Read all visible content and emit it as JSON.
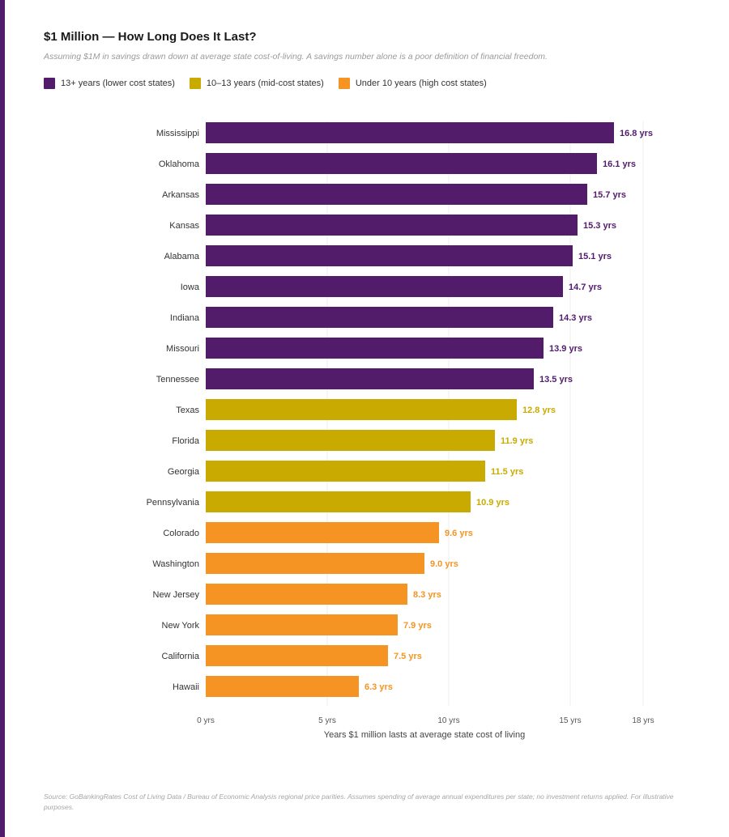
{
  "title": "$1 Million — How Long Does It Last?",
  "subtitle": "Assuming $1M in savings drawn down at average state cost-of-living. A savings number alone is a poor definition of financial freedom.",
  "colors": {
    "high": "#521c6b",
    "mid": "#c9aa00",
    "low": "#f59423",
    "accent_rule": "#4f1d6b",
    "grid": "#ececec",
    "axis_text": "#444444"
  },
  "legend": [
    {
      "label": "13+ years (lower cost states)",
      "color": "#521c6b"
    },
    {
      "label": "10–13 years (mid-cost states)",
      "color": "#c9aa00"
    },
    {
      "label": "Under 10 years (high cost states)",
      "color": "#f59423"
    }
  ],
  "chart_data": {
    "type": "bar",
    "orientation": "horizontal",
    "title": "$1 Million — How Long Does It Last?",
    "xlabel": "Years $1 million lasts at average state cost of living",
    "ylabel": "",
    "xlim": [
      0,
      18
    ],
    "xticks": [
      0,
      5,
      10,
      15,
      18
    ],
    "xtick_labels": [
      "0 yrs",
      "5 yrs",
      "10 yrs",
      "15 yrs",
      "18 yrs"
    ],
    "grid": true,
    "categories": [
      "Mississippi",
      "Oklahoma",
      "Arkansas",
      "Kansas",
      "Alabama",
      "Iowa",
      "Indiana",
      "Missouri",
      "Tennessee",
      "Texas",
      "Florida",
      "Georgia",
      "Pennsylvania",
      "Colorado",
      "Washington",
      "New Jersey",
      "New York",
      "California",
      "Hawaii"
    ],
    "values": [
      16.8,
      16.1,
      15.7,
      15.3,
      15.1,
      14.7,
      14.3,
      13.9,
      13.5,
      12.8,
      11.9,
      11.5,
      10.9,
      9.6,
      9.0,
      8.3,
      7.9,
      7.5,
      6.3
    ],
    "value_labels": [
      "16.8 yrs",
      "16.1 yrs",
      "15.7 yrs",
      "15.3 yrs",
      "15.1 yrs",
      "14.7 yrs",
      "14.3 yrs",
      "13.9 yrs",
      "13.5 yrs",
      "12.8 yrs",
      "11.9 yrs",
      "11.5 yrs",
      "10.9 yrs",
      "9.6 yrs",
      "9.0 yrs",
      "8.3 yrs",
      "7.9 yrs",
      "7.5 yrs",
      "6.3 yrs"
    ],
    "groups": [
      "high",
      "high",
      "high",
      "high",
      "high",
      "high",
      "high",
      "high",
      "high",
      "mid",
      "mid",
      "mid",
      "mid",
      "low",
      "low",
      "low",
      "low",
      "low",
      "low"
    ]
  },
  "footnote": "Source: GoBankingRates Cost of Living Data / Bureau of Economic Analysis regional price parities. Assumes spending of average annual expenditures per state; no investment returns applied. For illustrative purposes."
}
